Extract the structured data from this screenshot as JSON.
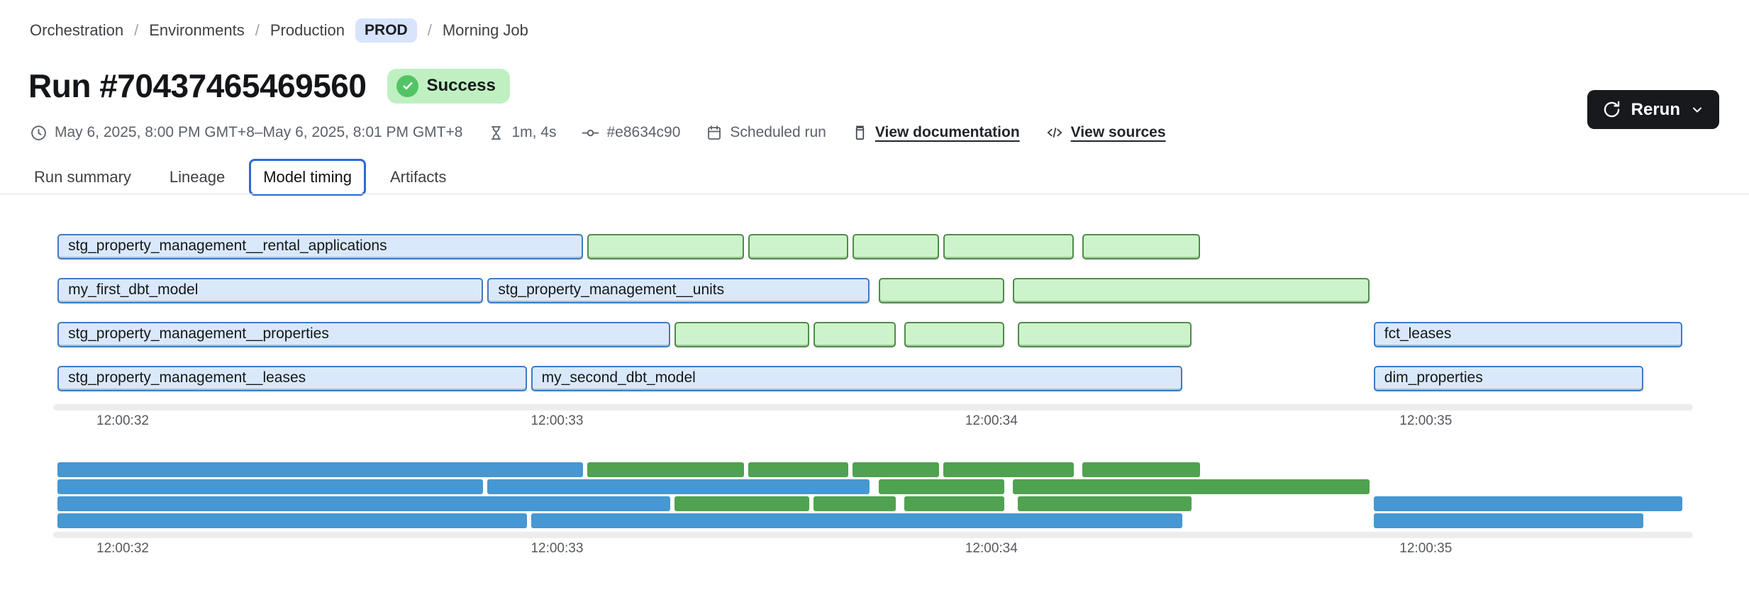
{
  "breadcrumb": {
    "orchestration": "Orchestration",
    "environments": "Environments",
    "production": "Production",
    "env_badge": "PROD",
    "job": "Morning Job",
    "separator": "/"
  },
  "header": {
    "title": "Run #70437465469560",
    "status": "Success"
  },
  "rerun": {
    "label": "Rerun"
  },
  "meta": {
    "datetime": "May 6, 2025, 8:00 PM GMT+8–May 6, 2025, 8:01 PM GMT+8",
    "duration": "1m, 4s",
    "commit": "#e8634c90",
    "trigger": "Scheduled run",
    "documentation_link": "View documentation",
    "sources_link": "View sources"
  },
  "tabs": [
    {
      "label": "Run summary",
      "active": false
    },
    {
      "label": "Lineage",
      "active": false
    },
    {
      "label": "Model timing",
      "active": true
    },
    {
      "label": "Artifacts",
      "active": false
    }
  ],
  "colors": {
    "model_bar_fill": "#d9e9fb",
    "model_bar_border": "#3d7cc1",
    "test_bar_fill": "#cdf3cb",
    "test_bar_border": "#4f8c49",
    "minimap_model": "#4697d2",
    "minimap_test": "#4fa24f",
    "active_tab_border": "#2e68d9",
    "success_badge_bg": "#c0f0c1",
    "success_icon": "#53c466",
    "env_badge_bg": "#d7e4fb",
    "rerun_button_bg": "#17191d"
  },
  "chart_data": {
    "type": "gantt",
    "title": "Model timing",
    "x_unit": "time (HH:MM:SS)",
    "domain": [
      31.84,
      35.62
    ],
    "ticks": [
      {
        "t": 32,
        "label": "12:00:32"
      },
      {
        "t": 33,
        "label": "12:00:33"
      },
      {
        "t": 34,
        "label": "12:00:34"
      },
      {
        "t": 35,
        "label": "12:00:35"
      }
    ],
    "rows": [
      [
        {
          "name": "stg_property_management__rental_applications",
          "color": "blue",
          "start": 31.85,
          "end": 33.06
        },
        {
          "name": "",
          "color": "green",
          "start": 33.07,
          "end": 33.43
        },
        {
          "name": "",
          "color": "green",
          "start": 33.44,
          "end": 33.67
        },
        {
          "name": "",
          "color": "green",
          "start": 33.68,
          "end": 33.88
        },
        {
          "name": "",
          "color": "green",
          "start": 33.89,
          "end": 34.19
        },
        {
          "name": "",
          "color": "green",
          "start": 34.21,
          "end": 34.48
        }
      ],
      [
        {
          "name": "my_first_dbt_model",
          "color": "blue",
          "start": 31.85,
          "end": 32.83
        },
        {
          "name": "stg_property_management__units",
          "color": "blue",
          "start": 32.84,
          "end": 33.72
        },
        {
          "name": "",
          "color": "green",
          "start": 33.74,
          "end": 34.03
        },
        {
          "name": "",
          "color": "green",
          "start": 34.05,
          "end": 34.87
        }
      ],
      [
        {
          "name": "stg_property_management__properties",
          "color": "blue",
          "start": 31.85,
          "end": 33.26
        },
        {
          "name": "",
          "color": "green",
          "start": 33.27,
          "end": 33.58
        },
        {
          "name": "",
          "color": "green",
          "start": 33.59,
          "end": 33.78
        },
        {
          "name": "",
          "color": "green",
          "start": 33.8,
          "end": 34.03
        },
        {
          "name": "",
          "color": "green",
          "start": 34.06,
          "end": 34.46
        },
        {
          "name": "fct_leases",
          "color": "blue",
          "start": 34.88,
          "end": 35.59
        }
      ],
      [
        {
          "name": "stg_property_management__leases",
          "color": "blue",
          "start": 31.85,
          "end": 32.93
        },
        {
          "name": "my_second_dbt_model",
          "color": "blue",
          "start": 32.94,
          "end": 34.44
        },
        {
          "name": "dim_properties",
          "color": "blue",
          "start": 34.88,
          "end": 35.5
        }
      ]
    ]
  }
}
